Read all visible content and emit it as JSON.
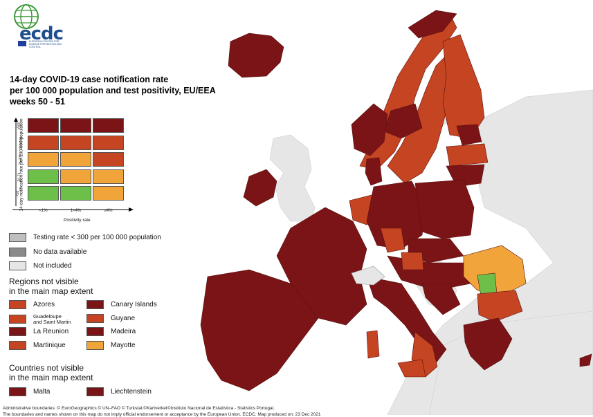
{
  "colors": {
    "darkred": "#7b1416",
    "red": "#c54421",
    "orange": "#f0a43a",
    "green": "#6cc04a",
    "lightgrey": "#bfbfbf",
    "darkgrey": "#8a8a8a",
    "notincluded": "#e6e6e6",
    "sea": "#ffffff",
    "brand": "#1f4e8c"
  },
  "logo": {
    "text": "ecdc",
    "subtitle": "EUROPEAN CENTRE FOR DISEASE PREVENTION AND CONTROL"
  },
  "title": "14-day COVID-19 case notification rate\nper 100 000 population and test positivity, EU/EEA\nweeks 50 - 51",
  "matrix": {
    "y_axis_title": "14-day notification rate per 100 000 population",
    "x_axis_title": "Positivity rate",
    "row_labels": [
      "≥500",
      "200-499",
      "75-200",
      "50-74",
      "<50"
    ],
    "col_labels": [
      "<1%",
      "1<4%",
      "≥4%"
    ],
    "cells": [
      [
        "darkred",
        "darkred",
        "darkred"
      ],
      [
        "red",
        "red",
        "red"
      ],
      [
        "orange",
        "orange",
        "red"
      ],
      [
        "green",
        "orange",
        "orange"
      ],
      [
        "green",
        "green",
        "orange"
      ]
    ]
  },
  "legend": {
    "testing_rate": "Testing rate < 300 per 100 000 population",
    "no_data": "No data available",
    "not_included": "Not included",
    "regions_heading": "Regions not visible\nin the main map extent",
    "regions": [
      {
        "label": "Azores",
        "color": "red"
      },
      {
        "label": "Canary Islands",
        "color": "darkred"
      },
      {
        "label": "Guadeloupe\nand Saint Martin",
        "color": "red"
      },
      {
        "label": "Guyane",
        "color": "red"
      },
      {
        "label": "La Reunion",
        "color": "darkred"
      },
      {
        "label": "Madeira",
        "color": "darkred"
      },
      {
        "label": "Martinique",
        "color": "red"
      },
      {
        "label": "Mayotte",
        "color": "orange"
      }
    ],
    "countries_heading": "Countries not visible\nin the main map extent",
    "countries": [
      {
        "label": "Malta",
        "color": "darkred"
      },
      {
        "label": "Liechtenstein",
        "color": "darkred"
      }
    ]
  },
  "footer": {
    "line1": "Administrative boundaries: © EuroGeographics © UN–FAO © Turkstat.©Kartverket©Instituto Nacional de Estatística - Statistics Portugal.",
    "line2": "The boundaries and names shown on this map do not imply official endorsement or acceptance by the European Union. ECDC. Map produced on: 23 Dec 2021"
  }
}
